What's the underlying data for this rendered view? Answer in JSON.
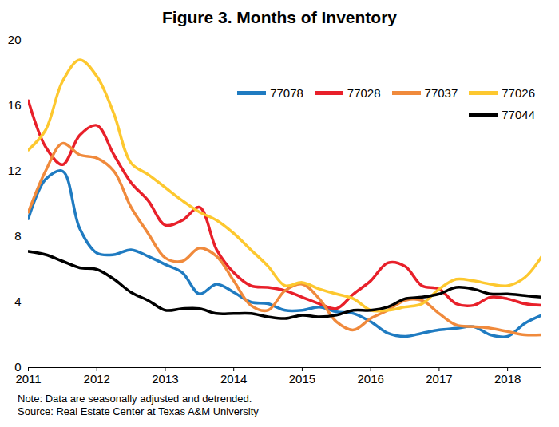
{
  "chart_data": {
    "type": "line",
    "title": "Figure 3. Months of Inventory",
    "note": "Note: Data are seasonally adjusted and detrended.",
    "source": "Source: Real Estate Center at Texas A&M University",
    "x": [
      2011,
      2011.25,
      2011.5,
      2011.75,
      2012,
      2012.25,
      2012.5,
      2012.75,
      2013,
      2013.25,
      2013.5,
      2013.75,
      2014,
      2014.25,
      2014.5,
      2014.75,
      2015,
      2015.25,
      2015.5,
      2015.75,
      2016,
      2016.25,
      2016.5,
      2016.75,
      2017,
      2017.25,
      2017.5,
      2017.75,
      2018,
      2018.25,
      2018.5
    ],
    "series": [
      {
        "name": "77078",
        "color": "#1f7bc1",
        "values": [
          9.1,
          11.5,
          12.0,
          8.5,
          7.0,
          6.9,
          7.2,
          6.8,
          6.3,
          5.8,
          4.5,
          5.1,
          4.6,
          4.0,
          3.9,
          3.5,
          3.5,
          3.7,
          3.4,
          3.3,
          2.8,
          2.1,
          1.9,
          2.1,
          2.3,
          2.4,
          2.5,
          2.0,
          1.9,
          2.7,
          3.2
        ]
      },
      {
        "name": "77028",
        "color": "#e8202a",
        "values": [
          16.3,
          13.5,
          12.4,
          14.2,
          14.8,
          13.0,
          11.3,
          10.2,
          8.7,
          9.0,
          9.8,
          7.2,
          5.8,
          5.0,
          4.9,
          4.7,
          4.3,
          3.9,
          3.6,
          4.5,
          5.3,
          6.4,
          6.2,
          5.0,
          4.8,
          3.9,
          3.8,
          4.3,
          4.2,
          3.9,
          3.8
        ]
      },
      {
        "name": "77037",
        "color": "#f08a3c",
        "values": [
          9.5,
          12.0,
          13.7,
          13.0,
          12.8,
          12.0,
          9.8,
          8.2,
          6.7,
          6.5,
          7.3,
          6.8,
          5.3,
          3.8,
          3.5,
          4.7,
          5.1,
          4.2,
          2.8,
          2.3,
          3.0,
          3.5,
          4.1,
          4.1,
          3.3,
          2.6,
          2.5,
          2.4,
          2.2,
          2.0,
          2.0
        ]
      },
      {
        "name": "77026",
        "color": "#fdc82f",
        "values": [
          13.3,
          14.5,
          17.5,
          18.8,
          17.8,
          15.5,
          12.5,
          11.8,
          11.0,
          10.2,
          9.5,
          9.0,
          8.2,
          7.2,
          6.2,
          5.0,
          5.2,
          4.8,
          4.5,
          4.2,
          3.5,
          3.5,
          3.7,
          3.9,
          4.8,
          5.4,
          5.3,
          5.1,
          5.0,
          5.5,
          6.8
        ]
      },
      {
        "name": "77044",
        "color": "#000000",
        "values": [
          7.1,
          6.9,
          6.5,
          6.1,
          6.0,
          5.4,
          4.6,
          4.1,
          3.5,
          3.6,
          3.6,
          3.3,
          3.3,
          3.3,
          3.1,
          3.0,
          3.2,
          3.1,
          3.2,
          3.5,
          3.5,
          3.7,
          4.2,
          4.3,
          4.5,
          4.9,
          4.8,
          4.5,
          4.5,
          4.4,
          4.3
        ]
      }
    ],
    "xlim": [
      2011,
      2018.5
    ],
    "xticks": [
      2011,
      2012,
      2013,
      2014,
      2015,
      2016,
      2017,
      2018
    ],
    "ylim": [
      0,
      20
    ],
    "yticks": [
      0,
      4,
      8,
      12,
      16,
      20
    ],
    "grid": false,
    "legend": "top-right"
  }
}
